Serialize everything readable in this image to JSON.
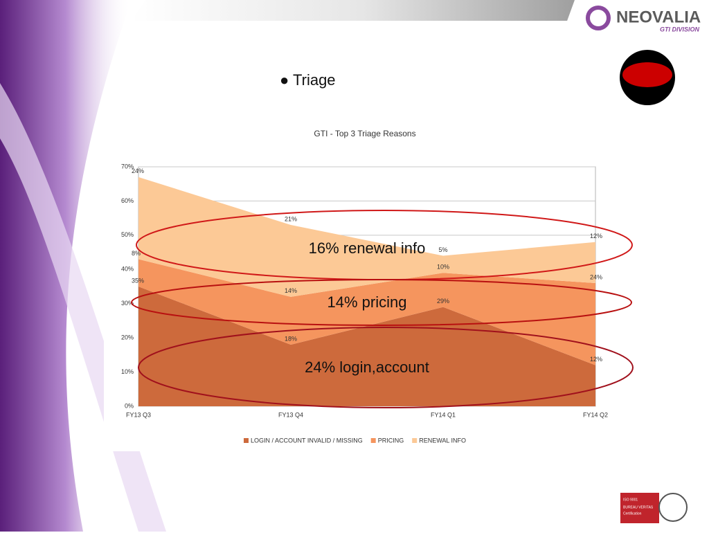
{
  "slide": {
    "bullet": "● Triage",
    "brand": "NEOVALIA",
    "brand_sub": "GTI DIVISION",
    "iso": [
      "ISO 9001",
      "BUREAU VERITAS",
      "Certification"
    ]
  },
  "chart_data": {
    "type": "stacked-area",
    "title": "GTI - Top 3 Triage Reasons",
    "categories": [
      "FY13 Q3",
      "FY13 Q4",
      "FY14 Q1",
      "FY14 Q2"
    ],
    "series": [
      {
        "name": "LOGIN / ACCOUNT INVALID / MISSING",
        "color": "#cd6a3c",
        "values": [
          35,
          18,
          29,
          12
        ],
        "value_labels": [
          "35%",
          "18%",
          "29%",
          "12%"
        ]
      },
      {
        "name": "PRICING",
        "color": "#f5955e",
        "values": [
          8,
          14,
          10,
          24
        ],
        "value_labels": [
          "8%",
          "14%",
          "10%",
          "24%"
        ]
      },
      {
        "name": "RENEWAL INFO",
        "color": "#fcc996",
        "values": [
          24,
          21,
          5,
          12
        ],
        "value_labels": [
          "24%",
          "21%",
          "5%",
          "12%"
        ]
      }
    ],
    "ylim": [
      0,
      70
    ],
    "yticks": [
      {
        "value": 0,
        "label": "0%"
      },
      {
        "value": 10,
        "label": "10%"
      },
      {
        "value": 20,
        "label": "20%"
      },
      {
        "value": 30,
        "label": "30%"
      },
      {
        "value": 40,
        "label": "40%"
      },
      {
        "value": 50,
        "label": "50%"
      },
      {
        "value": 60,
        "label": "60%"
      },
      {
        "value": 70,
        "label": "70%"
      }
    ],
    "grid": true,
    "annotations": [
      "16% renewal info",
      "14% pricing",
      "24% login,account"
    ]
  }
}
